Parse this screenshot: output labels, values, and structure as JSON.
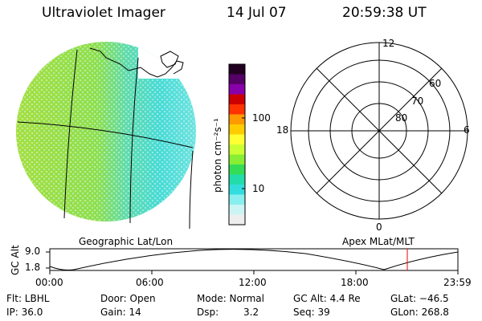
{
  "header": {
    "title": "Ultraviolet Imager",
    "date": "14 Jul 07",
    "time": "20:59:38 UT"
  },
  "colorbar": {
    "axis_label": "photon cm⁻²s⁻¹",
    "ticks": [
      {
        "value": 100,
        "label": "100"
      },
      {
        "value": 10,
        "label": "10"
      }
    ],
    "scale": "log",
    "colors": [
      "#220022",
      "#550066",
      "#8800aa",
      "#cc0000",
      "#ff3300",
      "#ff9900",
      "#ffcc00",
      "#ffff33",
      "#ccff33",
      "#88ee33",
      "#33dd55",
      "#22ddaa",
      "#33dddd",
      "#88eeee",
      "#ccf4f4",
      "#eeeeee"
    ]
  },
  "polar": {
    "mlt_labels": {
      "top": "12",
      "left": "18",
      "right": "6",
      "bottom": "0"
    },
    "lat_labels": [
      "60",
      "70",
      "80"
    ]
  },
  "map_labels": {
    "left": "Geographic Lat/Lon",
    "right": "Apex MLat/MLT"
  },
  "altitude_plot": {
    "ylabel": "GC Alt",
    "y_ticks": [
      "9.0",
      "1.8"
    ],
    "x_ticks": [
      "00:00",
      "06:00",
      "12:00",
      "18:00",
      "23:59"
    ],
    "current_time_marker": "20:59"
  },
  "info": {
    "filter": "Flt: LBHL",
    "ip": "IP: 36.0",
    "door": "Door: Open",
    "gain": "Gain: 14",
    "mode": "Mode: Normal",
    "dsp_label": "Dsp:",
    "dsp_value": "3.2",
    "gc_alt": "GC Alt: 4.4 Re",
    "seq": "Seq: 39",
    "glat": "GLat: −46.5",
    "glon": "GLon: 268.8"
  },
  "colors": {
    "map_green": "#9ae046",
    "map_cyan": "#46dcd6",
    "time_marker": "#ee0000"
  }
}
